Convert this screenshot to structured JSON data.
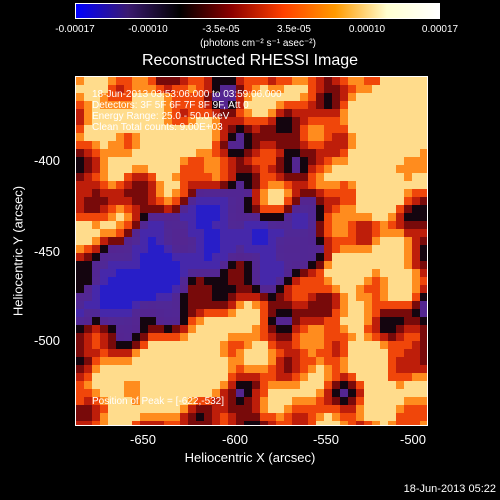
{
  "colorbar": {
    "ticks": [
      "-0.00017",
      "-0.00010",
      "-3.5e-05",
      "3.5e-05",
      "0.00010",
      "0.00017"
    ],
    "unit": "(photons cm⁻² s⁻¹ asec⁻²)",
    "gradient": [
      "#0000ff",
      "#3a1a70",
      "#000000",
      "#8b0000",
      "#ff4000",
      "#ff9a00",
      "#ffffd0",
      "#ffffff"
    ]
  },
  "title": "Reconstructed RHESSI Image",
  "info": {
    "time_range": "18-Jun-2013 03:53:06.000 to 03:59:06.000",
    "detectors": "Detectors: 3F 5F 6F 7F 8F 9F, Att 0",
    "energy": "Energy Range: 25.0 - 50.0 keV",
    "clean": "Clean     Total counts: 9.00E+03"
  },
  "peak": "Position of Peak = [-622,-532]",
  "axes": {
    "x_label": "Heliocentric X (arcsec)",
    "y_label": "Heliocentric Y (arcsec)",
    "x_ticks": [
      "-650",
      "-600",
      "-550",
      "-500"
    ],
    "y_ticks": [
      "-400",
      "-450",
      "-500"
    ]
  },
  "timestamp": "18-Jun-2013 05:22"
}
